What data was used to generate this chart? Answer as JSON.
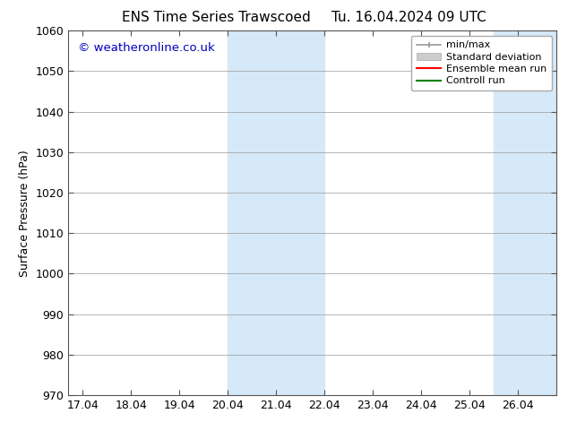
{
  "title_left": "ENS Time Series Trawscoed",
  "title_right": "Tu. 16.04.2024 09 UTC",
  "ylabel": "Surface Pressure (hPa)",
  "xlim": [
    16.7,
    26.8
  ],
  "ylim": [
    970,
    1060
  ],
  "yticks": [
    970,
    980,
    990,
    1000,
    1010,
    1020,
    1030,
    1040,
    1050,
    1060
  ],
  "xtick_labels": [
    "17.04",
    "18.04",
    "19.04",
    "20.04",
    "21.04",
    "22.04",
    "23.04",
    "24.04",
    "25.04",
    "26.04"
  ],
  "xtick_positions": [
    17,
    18,
    19,
    20,
    21,
    22,
    23,
    24,
    25,
    26
  ],
  "shaded_bands": [
    {
      "x_start": 20.0,
      "x_end": 22.0
    },
    {
      "x_start": 25.5,
      "x_end": 26.8
    }
  ],
  "shade_color": "#d6e9f8",
  "background_color": "#ffffff",
  "watermark_text": "© weatheronline.co.uk",
  "watermark_color": "#0000bb",
  "legend_items": [
    {
      "label": "min/max",
      "color": "#999999",
      "lw": 1.2,
      "style": "line_with_ticks"
    },
    {
      "label": "Standard deviation",
      "color": "#cccccc",
      "lw": 8,
      "style": "bar"
    },
    {
      "label": "Ensemble mean run",
      "color": "#ff0000",
      "lw": 1.5,
      "style": "line"
    },
    {
      "label": "Controll run",
      "color": "#008000",
      "lw": 1.5,
      "style": "line"
    }
  ],
  "grid_color": "#999999",
  "title_fontsize": 11,
  "axis_fontsize": 9,
  "watermark_fontsize": 9.5,
  "legend_fontsize": 8
}
